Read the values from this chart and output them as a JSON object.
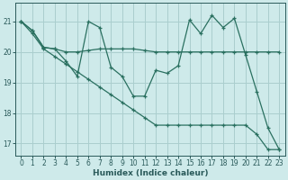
{
  "xlabel": "Humidex (Indice chaleur)",
  "background_color": "#ceeaea",
  "grid_color": "#aacece",
  "line_color": "#2a7060",
  "xlim": [
    -0.5,
    23.5
  ],
  "ylim": [
    16.6,
    21.6
  ],
  "yticks": [
    17,
    18,
    19,
    20,
    21
  ],
  "xticks": [
    0,
    1,
    2,
    3,
    4,
    5,
    6,
    7,
    8,
    9,
    10,
    11,
    12,
    13,
    14,
    15,
    16,
    17,
    18,
    19,
    20,
    21,
    22,
    23
  ],
  "line_flat": [
    21.0,
    20.7,
    20.15,
    20.1,
    20.0,
    20.0,
    20.05,
    20.1,
    20.1,
    20.1,
    20.1,
    20.05,
    20.0,
    20.0,
    20.0,
    20.0,
    20.0,
    20.0,
    20.0,
    20.0,
    20.0,
    20.0,
    20.0,
    20.0
  ],
  "line_jagged": [
    21.0,
    20.7,
    20.15,
    20.1,
    19.7,
    19.2,
    21.0,
    20.8,
    19.5,
    19.2,
    18.55,
    18.55,
    19.4,
    19.3,
    19.55,
    21.05,
    20.6,
    21.2,
    20.8,
    21.1,
    19.9,
    18.7,
    17.5,
    16.8
  ],
  "line_descent": [
    21.0,
    20.6,
    20.1,
    19.85,
    19.6,
    19.35,
    19.1,
    18.85,
    18.6,
    18.35,
    18.1,
    17.85,
    17.6,
    17.6,
    17.6,
    17.6,
    17.6,
    17.6,
    17.6,
    17.6,
    17.6,
    17.3,
    16.8,
    16.8
  ]
}
